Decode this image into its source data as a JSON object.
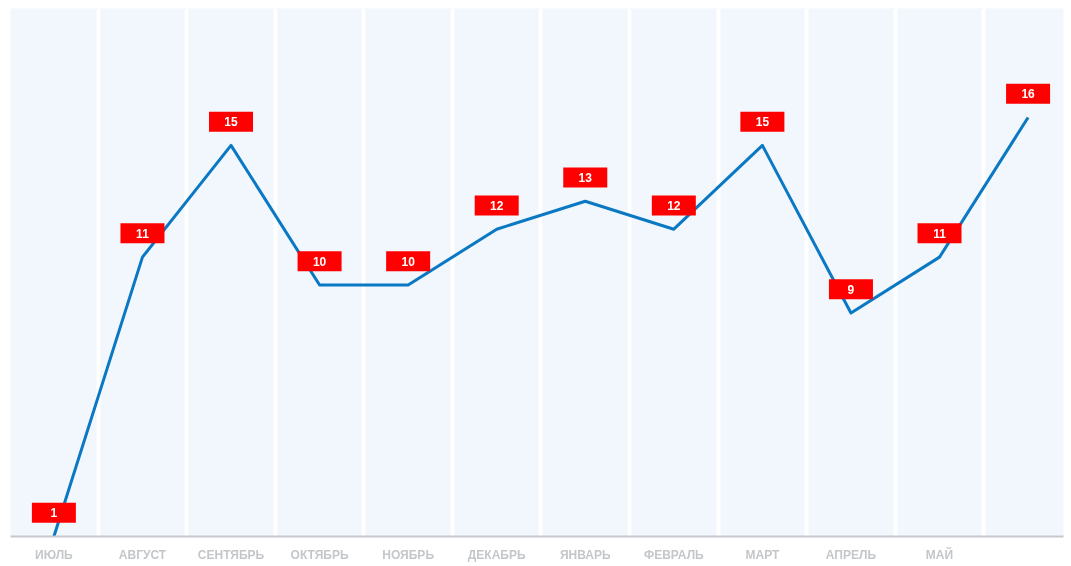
{
  "chart_data": {
    "type": "line",
    "categories": [
      "ИЮЛЬ",
      "АВГУСТ",
      "СЕНТЯБРЬ",
      "ОКТЯБРЬ",
      "НОЯБРЬ",
      "ДЕКАБРЬ",
      "ЯНВАРЬ",
      "ФЕВРАЛЬ",
      "МАРТ",
      "АПРЕЛЬ",
      "МАЙ",
      null
    ],
    "series": [
      {
        "color": "#0a78c2",
        "values": [
          1,
          11,
          15,
          10,
          10,
          12,
          13,
          12,
          15,
          9,
          11,
          16
        ]
      }
    ],
    "ylim": [
      1,
      19.9
    ],
    "data_labels": true,
    "grid": "x",
    "marker": "none",
    "line_style": "solid",
    "tick_labels": "x"
  }
}
